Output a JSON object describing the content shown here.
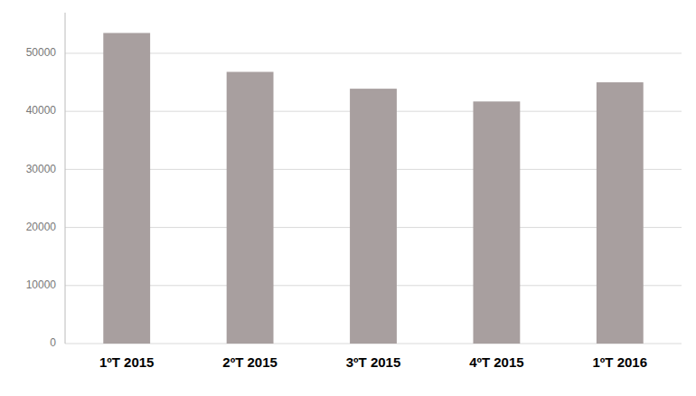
{
  "chart_data": {
    "type": "bar",
    "categories": [
      "1ºT 2015",
      "2ºT 2015",
      "3ºT 2015",
      "4ºT 2015",
      "1ºT 2016"
    ],
    "values": [
      53500,
      46800,
      43900,
      41700,
      45000
    ],
    "color": "#a89f9f",
    "ylim": [
      0,
      57000
    ],
    "yticks": [
      0,
      10000,
      20000,
      30000,
      40000,
      50000
    ],
    "grid": true
  }
}
